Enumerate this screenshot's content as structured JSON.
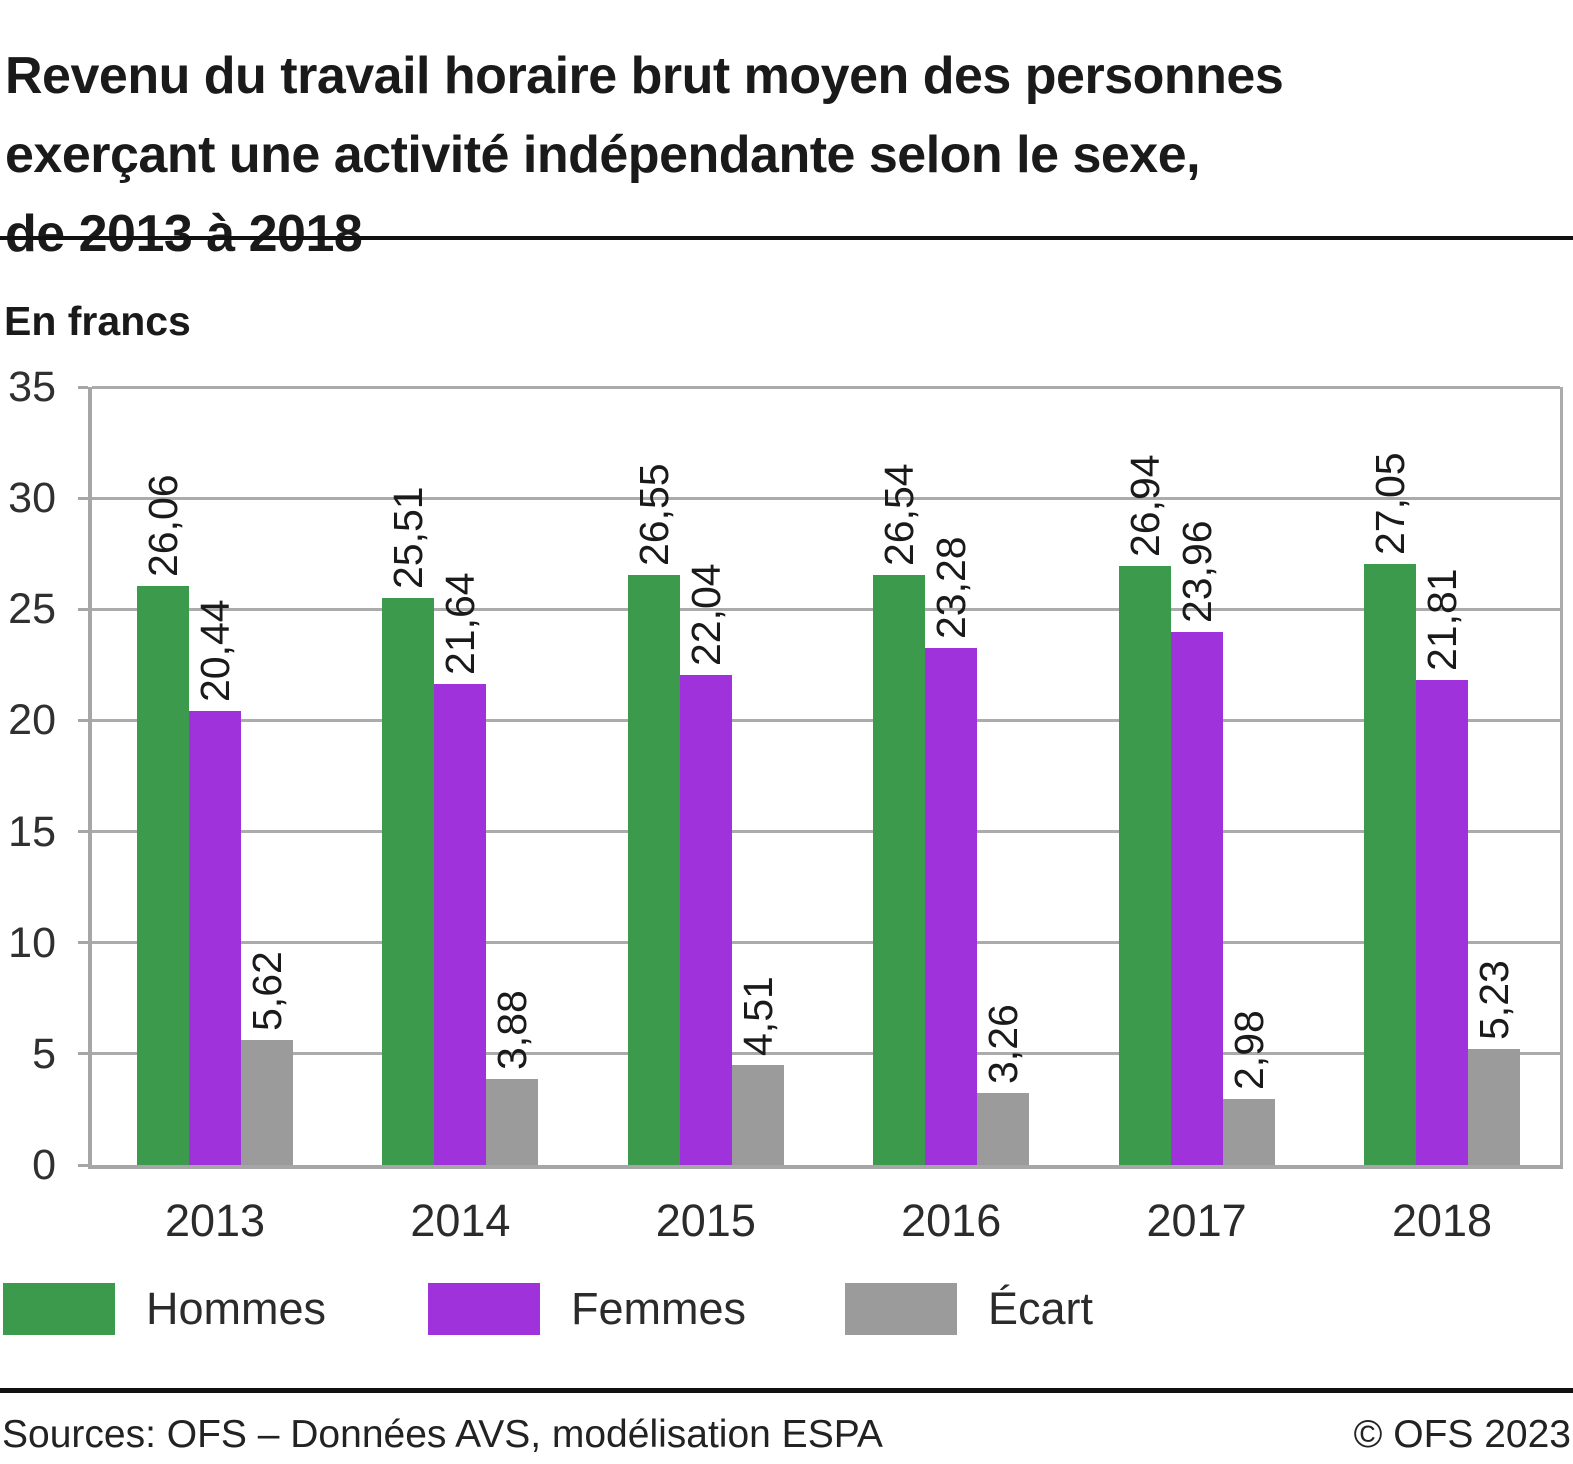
{
  "header": {
    "title_lines": [
      "Revenu du travail horaire brut moyen des personnes",
      "exerçant une activité indépendante selon le sexe,",
      "de 2013 à 2018"
    ],
    "unit_label": "En francs"
  },
  "chart_data": {
    "type": "bar",
    "title": "Revenu du travail horaire brut moyen des personnes exerçant une activité indépendante selon le sexe, de 2013 à 2018",
    "unit": "En francs",
    "categories": [
      "2013",
      "2014",
      "2015",
      "2016",
      "2017",
      "2018"
    ],
    "series": [
      {
        "name": "Hommes",
        "color": "#3C9A4D",
        "values": [
          26.06,
          25.51,
          26.55,
          26.54,
          26.94,
          27.05
        ],
        "labels": [
          "26,06",
          "25,51",
          "26,55",
          "26,54",
          "26,94",
          "27,05"
        ]
      },
      {
        "name": "Femmes",
        "color": "#A032DC",
        "values": [
          20.44,
          21.64,
          22.04,
          23.28,
          23.96,
          21.81
        ],
        "labels": [
          "20,44",
          "21,64",
          "22,04",
          "23,28",
          "23,96",
          "21,81"
        ]
      },
      {
        "name": "Écart",
        "color": "#9B9B9B",
        "values": [
          5.62,
          3.88,
          4.51,
          3.26,
          2.98,
          5.23
        ],
        "labels": [
          "5,62",
          "3,88",
          "4,51",
          "3,26",
          "2,98",
          "5,23"
        ]
      }
    ],
    "ylim": [
      0,
      35
    ],
    "yticks": [
      0,
      5,
      10,
      15,
      20,
      25,
      30,
      35
    ],
    "grid": true,
    "legend_position": "bottom",
    "gridline_color": "#ABABAB",
    "axis_color": "#A6A6A6",
    "label_color": "#1A1A1A"
  },
  "footer": {
    "source": "Sources: OFS – Données AVS, modélisation ESPA",
    "copyright": "© OFS 2023"
  }
}
